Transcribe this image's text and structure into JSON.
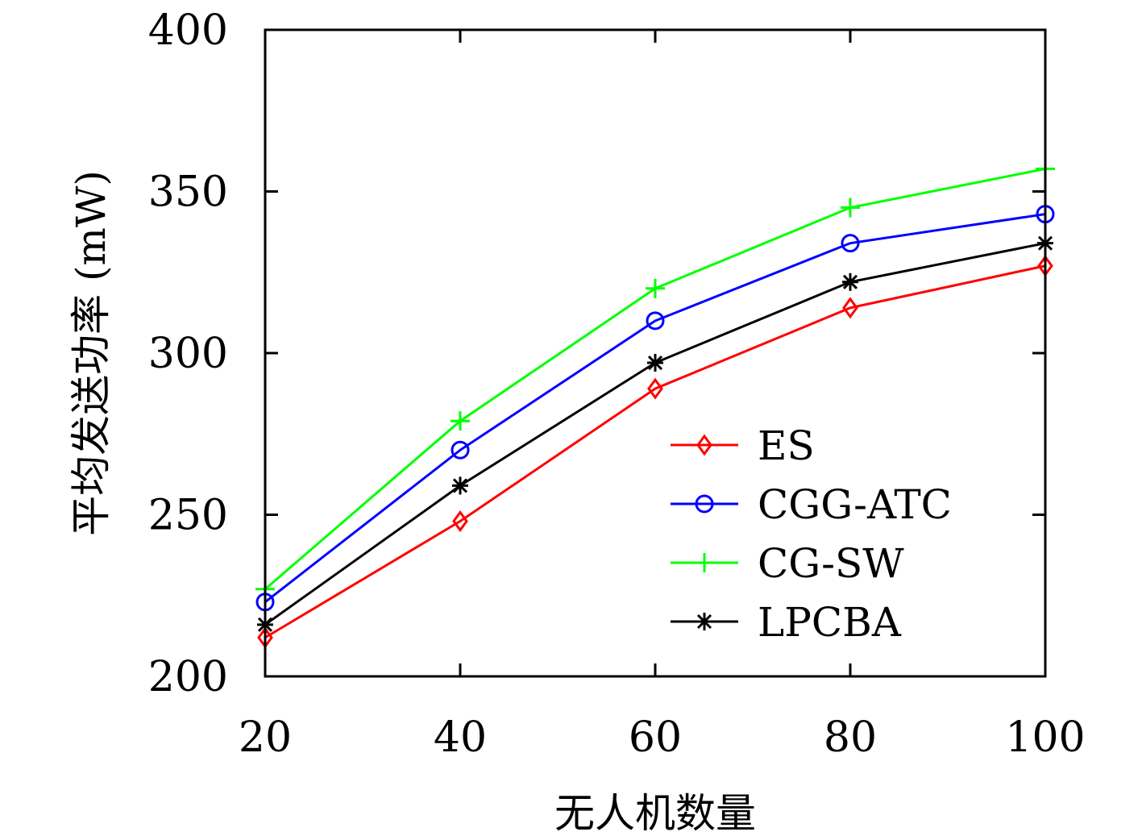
{
  "chart_data": {
    "type": "line",
    "title": "",
    "xlabel": "无人机数量",
    "ylabel": "平均发送功率 (mW)",
    "x": [
      20,
      40,
      60,
      80,
      100
    ],
    "xticks": [
      "20",
      "40",
      "60",
      "80",
      "100"
    ],
    "yticks": [
      "200",
      "250",
      "300",
      "350",
      "400"
    ],
    "xlim": [
      20,
      100
    ],
    "ylim": [
      200,
      400
    ],
    "grid": false,
    "legend_position": "lower-right",
    "series": [
      {
        "name": "ES",
        "color": "#ff0000",
        "marker": "diamond",
        "values": [
          212,
          248,
          289,
          314,
          327
        ]
      },
      {
        "name": "CGG-ATC",
        "color": "#0000ff",
        "marker": "circle",
        "values": [
          223,
          270,
          310,
          334,
          343
        ]
      },
      {
        "name": "CG-SW",
        "color": "#00ff00",
        "marker": "plus",
        "values": [
          227,
          279,
          320,
          345,
          357
        ]
      },
      {
        "name": "LPCBA",
        "color": "#000000",
        "marker": "asterisk",
        "values": [
          216,
          259,
          297,
          322,
          334
        ]
      }
    ]
  }
}
